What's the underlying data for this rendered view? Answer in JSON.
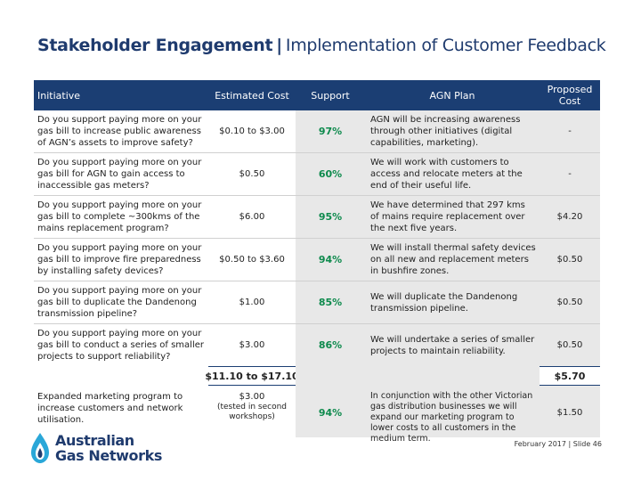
{
  "title": {
    "main": "Stakeholder Engagement",
    "separator": "|",
    "subtitle": "Implementation of Customer Feedback"
  },
  "headers": {
    "initiative": "Initiative",
    "estimated_cost": "Estimated Cost",
    "support": "Support",
    "agn_plan": "AGN Plan",
    "proposed_cost": "Proposed Cost"
  },
  "rows": [
    {
      "initiative": "Do you support paying more on your gas bill to increase public awareness of AGN’s assets to improve safety?",
      "estimated_cost": "$0.10 to $3.00",
      "support": "97%",
      "agn_plan": "AGN will be increasing awareness through other initiatives (digital capabilities, marketing).",
      "proposed_cost": "-"
    },
    {
      "initiative": "Do you support paying more on your gas bill for AGN to gain access to inaccessible gas meters?",
      "estimated_cost": "$0.50",
      "support": "60%",
      "agn_plan": "We will work with customers to access and relocate meters at the end of their useful life.",
      "proposed_cost": "-"
    },
    {
      "initiative": "Do you support paying more on your gas bill to complete ~300kms of the mains replacement program?",
      "estimated_cost": "$6.00",
      "support": "95%",
      "agn_plan": "We have determined that 297 kms of mains require replacement over the next five years.",
      "proposed_cost": "$4.20"
    },
    {
      "initiative": "Do you support paying more on your gas bill to improve fire preparedness by installing safety devices?",
      "estimated_cost": "$0.50 to $3.60",
      "support": "94%",
      "agn_plan": "We will install thermal safety devices on all new and replacement meters in bushfire zones.",
      "proposed_cost": "$0.50"
    },
    {
      "initiative": "Do you support paying more on your gas bill to duplicate the Dandenong transmission pipeline?",
      "estimated_cost": "$1.00",
      "support": "85%",
      "agn_plan": "We will duplicate the Dandenong transmission pipeline.",
      "proposed_cost": "$0.50"
    },
    {
      "initiative": "Do you support paying more on your gas bill to conduct a series of smaller projects to support reliability?",
      "estimated_cost": "$3.00",
      "support": "86%",
      "agn_plan": "We will undertake a series of smaller projects to maintain reliability.",
      "proposed_cost": "$0.50"
    }
  ],
  "totals": {
    "estimated_cost": "$11.10 to $17.10",
    "proposed_cost": "$5.70"
  },
  "extra_row": {
    "initiative": "Expanded marketing program to increase customers and network utilisation.",
    "estimated_cost": "$3.00",
    "estimated_cost_note": "(tested in second workshops)",
    "support": "94%",
    "agn_plan": "In conjunction with the other Victorian gas distribution businesses we will expand our marketing program to lower costs to all customers in the medium term.",
    "proposed_cost": "$1.50"
  },
  "logo": {
    "line1": "Australian",
    "line2": "Gas Networks"
  },
  "footer": "February 2017 | Slide 46",
  "colors": {
    "header_bg": "#1b3e73",
    "support_green": "#0e8a4d",
    "shade": "#e8e8e8",
    "title": "#1f3b6e"
  }
}
